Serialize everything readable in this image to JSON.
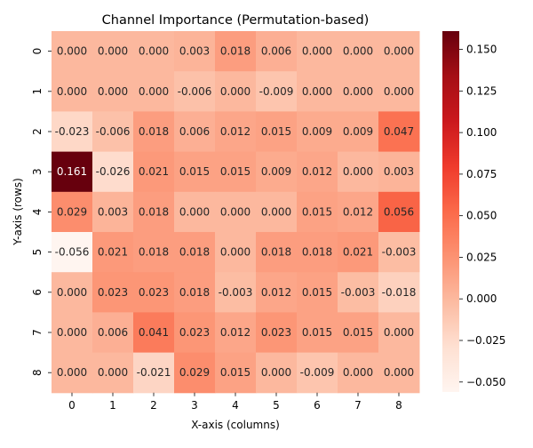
{
  "chart_data": {
    "type": "heatmap",
    "title": "Channel Importance (Permutation-based)",
    "xlabel": "X-axis (columns)",
    "ylabel": "Y-axis (rows)",
    "x_categories": [
      "0",
      "1",
      "2",
      "3",
      "4",
      "5",
      "6",
      "7",
      "8"
    ],
    "y_categories": [
      "0",
      "1",
      "2",
      "3",
      "4",
      "5",
      "6",
      "7",
      "8"
    ],
    "values": [
      [
        "0.000",
        "0.000",
        "0.000",
        "0.003",
        "0.018",
        "0.006",
        "0.000",
        "0.000",
        "0.000"
      ],
      [
        "0.000",
        "0.000",
        "0.000",
        "-0.006",
        "0.000",
        "-0.009",
        "0.000",
        "0.000",
        "0.000"
      ],
      [
        "-0.023",
        "-0.006",
        "0.018",
        "0.006",
        "0.012",
        "0.015",
        "0.009",
        "0.009",
        "0.047"
      ],
      [
        "0.161",
        "-0.026",
        "0.021",
        "0.015",
        "0.015",
        "0.009",
        "0.012",
        "0.000",
        "0.003"
      ],
      [
        "0.029",
        "0.003",
        "0.018",
        "0.000",
        "0.000",
        "0.000",
        "0.015",
        "0.012",
        "0.056"
      ],
      [
        "-0.056",
        "0.021",
        "0.018",
        "0.018",
        "0.000",
        "0.018",
        "0.018",
        "0.021",
        "-0.003"
      ],
      [
        "0.000",
        "0.023",
        "0.023",
        "0.018",
        "-0.003",
        "0.012",
        "0.015",
        "-0.003",
        "-0.018"
      ],
      [
        "0.000",
        "0.006",
        "0.041",
        "0.023",
        "0.012",
        "0.023",
        "0.015",
        "0.015",
        "0.000"
      ],
      [
        "0.000",
        "0.000",
        "-0.021",
        "0.029",
        "0.015",
        "0.000",
        "-0.009",
        "0.000",
        "0.000"
      ]
    ],
    "colorbar": {
      "min": -0.056,
      "max": 0.161,
      "ticks": [
        "0.150",
        "0.125",
        "0.100",
        "0.075",
        "0.050",
        "0.025",
        "0.000",
        "−0.025",
        "−0.050"
      ],
      "tick_values": [
        0.15,
        0.125,
        0.1,
        0.075,
        0.05,
        0.025,
        0.0,
        -0.025,
        -0.05
      ]
    },
    "colormap": "Reds",
    "grid": false
  }
}
